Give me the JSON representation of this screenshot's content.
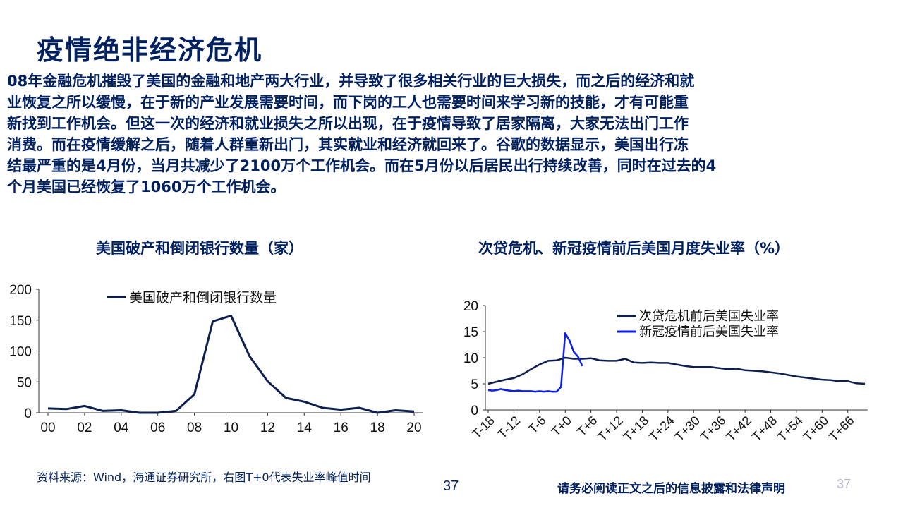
{
  "slide": {
    "title": "疫情绝非经济危机",
    "paragraph_lines": [
      "08年金融危机摧毁了美国的金融和地产两大行业，并导致了很多相关行业的巨大损失，而之后的经济和就",
      "业恢复之所以缓慢，在于新的产业发展需要时间，而下岗的工人也需要时间来学习新的技能，才有可能重",
      "新找到工作机会。但这一次的经济和就业损失之所以出现，在于疫情导致了居家隔离，大家无法出门工作",
      "消费。而在疫情缓解之后，随着人群重新出门，其实就业和经济就回来了。谷歌的数据显示，美国出行冻",
      "结最严重的是4月份，当月共减少了2100万个工作机会。而在5月份以后居民出行持续改善，同时在过去的4",
      "个月美国已经恢复了1060万个工作机会。"
    ],
    "footer": {
      "source": "资料来源：Wind，海通证券研究所，右图T+0代表失业率峰值时间",
      "page_number": "37",
      "disclaimer": "请务必阅读正文之后的信息披露和法律声明",
      "page_number_faint": "37"
    }
  },
  "chart_data": [
    {
      "type": "line",
      "title": "美国破产和倒闭银行数量（家）",
      "x": [
        2000,
        2001,
        2002,
        2003,
        2004,
        2005,
        2006,
        2007,
        2008,
        2009,
        2010,
        2011,
        2012,
        2013,
        2014,
        2015,
        2016,
        2017,
        2018,
        2019,
        2020
      ],
      "tick_labels": [
        "00",
        "02",
        "04",
        "06",
        "08",
        "10",
        "12",
        "14",
        "16",
        "18",
        "20"
      ],
      "ylim": [
        0,
        200
      ],
      "yticks": [
        "0",
        "50",
        "100",
        "150",
        "200"
      ],
      "series": [
        {
          "name": "美国破产和倒闭银行数量",
          "color": "#0d1f4e",
          "values": [
            7,
            6,
            11,
            3,
            4,
            0,
            0,
            3,
            30,
            148,
            157,
            92,
            51,
            24,
            18,
            8,
            5,
            8,
            0,
            4,
            2
          ]
        }
      ],
      "legend": "top-left",
      "grid": false
    },
    {
      "type": "line",
      "title": "次贷危机、新冠疫情前后美国月度失业率（%）",
      "x_range": [
        -18,
        70
      ],
      "tick_labels": [
        "T-18",
        "T-12",
        "T-6",
        "T+0",
        "T+6",
        "T+12",
        "T+18",
        "T+24",
        "T+30",
        "T+36",
        "T+42",
        "T+48",
        "T+54",
        "T+60",
        "T+66"
      ],
      "ylim": [
        0,
        20
      ],
      "yticks": [
        "0",
        "5",
        "10",
        "15",
        "20"
      ],
      "series": [
        {
          "name": "次贷危机前后美国失业率",
          "color": "#0d1f4e",
          "x": [
            -18,
            -16,
            -14,
            -12,
            -10,
            -8,
            -6,
            -4,
            -2,
            0,
            2,
            4,
            6,
            8,
            10,
            12,
            14,
            16,
            18,
            20,
            22,
            24,
            26,
            28,
            30,
            32,
            34,
            36,
            38,
            40,
            42,
            44,
            46,
            48,
            50,
            52,
            54,
            56,
            58,
            60,
            62,
            64,
            66,
            68,
            70
          ],
          "values": [
            5.0,
            5.4,
            5.8,
            6.1,
            6.8,
            7.8,
            8.7,
            9.4,
            9.5,
            10.0,
            9.8,
            9.8,
            9.9,
            9.5,
            9.4,
            9.4,
            9.8,
            9.1,
            9.0,
            9.1,
            9.0,
            9.0,
            8.7,
            8.4,
            8.2,
            8.2,
            8.2,
            8.0,
            7.8,
            7.9,
            7.6,
            7.5,
            7.4,
            7.2,
            7.0,
            6.7,
            6.4,
            6.2,
            6.0,
            5.8,
            5.7,
            5.5,
            5.5,
            5.1,
            5.0
          ]
        },
        {
          "name": "新冠疫情前后美国失业率",
          "color": "#0a1fe8",
          "x": [
            -18,
            -17,
            -16,
            -15,
            -14,
            -13,
            -12,
            -11,
            -10,
            -9,
            -8,
            -7,
            -6,
            -5,
            -4,
            -3,
            -2,
            -1,
            0,
            1,
            2,
            3,
            4
          ],
          "values": [
            3.8,
            3.7,
            3.8,
            4.0,
            3.8,
            3.7,
            3.6,
            3.7,
            3.6,
            3.6,
            3.6,
            3.5,
            3.6,
            3.5,
            3.6,
            3.5,
            3.5,
            4.4,
            14.7,
            13.3,
            11.1,
            10.2,
            8.4
          ]
        }
      ],
      "legend": "top-left",
      "grid": false
    }
  ]
}
